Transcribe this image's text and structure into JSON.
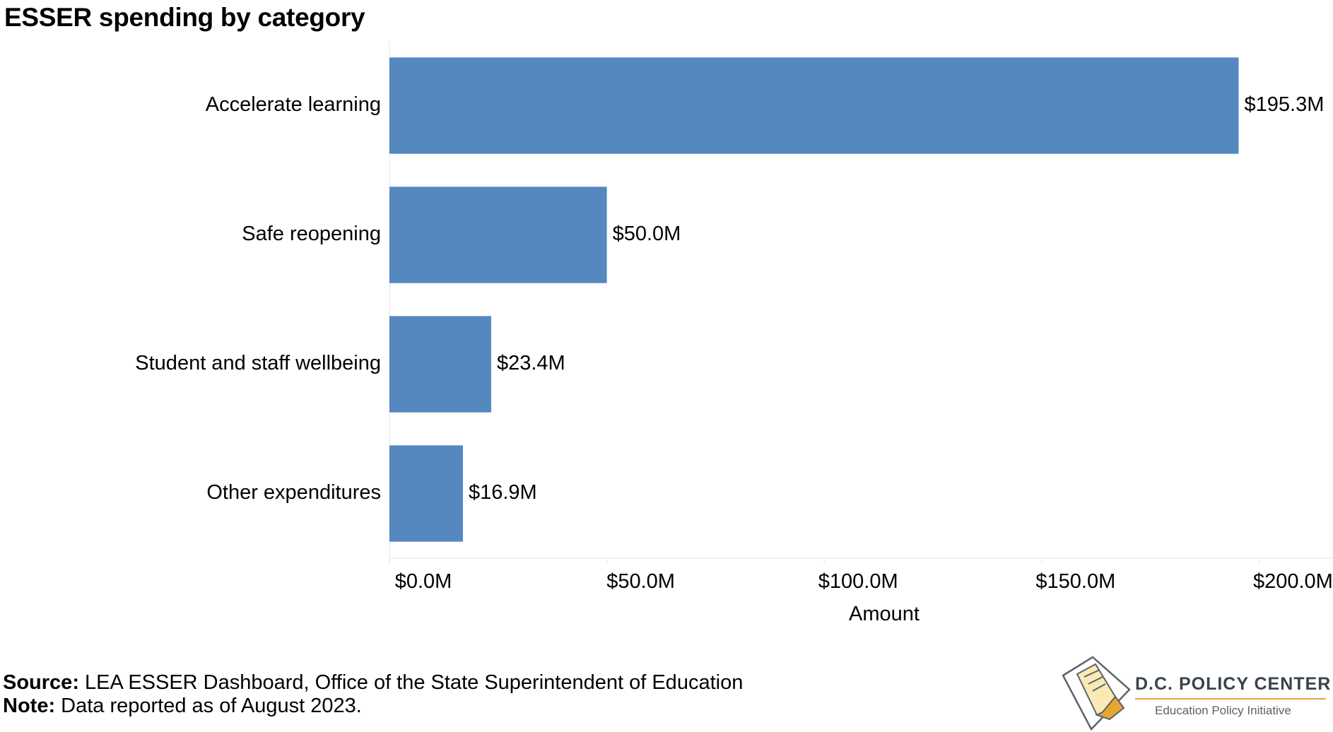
{
  "title": "ESSER spending by category",
  "chart_data": {
    "type": "bar",
    "orientation": "horizontal",
    "categories": [
      "Accelerate learning",
      "Safe reopening",
      "Student and staff wellbeing",
      "Other expenditures"
    ],
    "values": [
      195.3,
      50.0,
      23.4,
      16.9
    ],
    "value_labels": [
      "$195.3M",
      "$50.0M",
      "$23.4M",
      "$16.9M"
    ],
    "xlabel": "Amount",
    "ylabel": "",
    "xlim": [
      0,
      217
    ],
    "x_ticks": [
      0,
      50,
      100,
      150,
      200
    ],
    "x_tick_labels": [
      "$0.0M",
      "$50.0M",
      "$100.0M",
      "$150.0M",
      "$200.0M"
    ],
    "bar_color": "#5588bf",
    "unit": "$M"
  },
  "footer": {
    "source_label": "Source:",
    "source_text": " LEA ESSER Dashboard, Office of the State Superintendent of Education",
    "note_label": "Note:",
    "note_text": " Data reported as of August 2023."
  },
  "logo": {
    "name": "D.C. POLICY CENTER",
    "subtitle": "Education Policy Initiative",
    "icon": "dc-map-pencil-icon",
    "accent_color": "#e7a630"
  }
}
